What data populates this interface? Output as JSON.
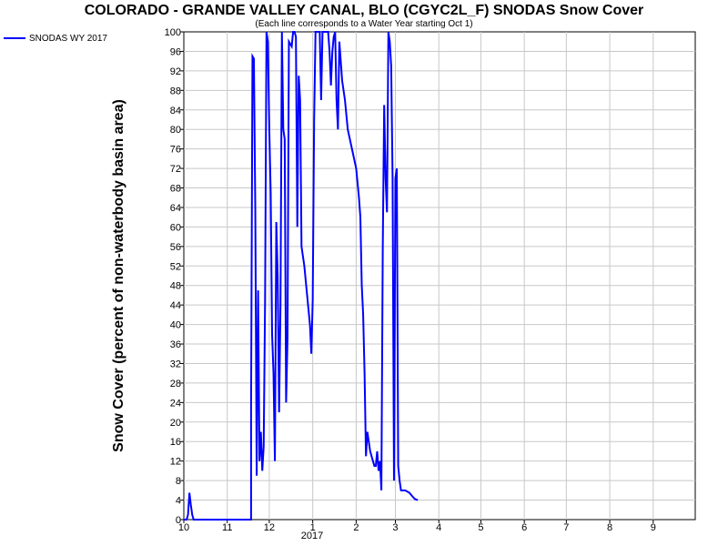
{
  "chart_data": {
    "type": "line",
    "title": "COLORADO - GRANDE VALLEY CANAL, BLO (CGYC2L_F) SNODAS Snow Cover",
    "subtitle": "(Each line corresponds to a Water Year starting Oct 1)",
    "ylabel": "Snow Cover (percent of non-waterbody basin area)",
    "xlabel": "",
    "year_label": "2017",
    "ylim": [
      0,
      100
    ],
    "yticks": [
      0,
      4,
      8,
      12,
      16,
      20,
      24,
      28,
      32,
      36,
      40,
      44,
      48,
      52,
      56,
      60,
      64,
      68,
      72,
      76,
      80,
      84,
      88,
      92,
      96,
      100
    ],
    "xticks": [
      "10",
      "11",
      "12",
      "1",
      "2",
      "3",
      "4",
      "5",
      "6",
      "7",
      "8",
      "9"
    ],
    "grid": true,
    "legend_position": "top-left",
    "series": [
      {
        "name": "SNODAS WY 2017",
        "color": "#0000ff",
        "points": [
          [
            "2016-10-01",
            0
          ],
          [
            "2016-10-03",
            0
          ],
          [
            "2016-10-04",
            1
          ],
          [
            "2016-10-05",
            5.5
          ],
          [
            "2016-10-06",
            3
          ],
          [
            "2016-10-07",
            1
          ],
          [
            "2016-10-08",
            0
          ],
          [
            "2016-10-15",
            0
          ],
          [
            "2016-11-01",
            0
          ],
          [
            "2016-11-15",
            0
          ],
          [
            "2016-11-18",
            0
          ],
          [
            "2016-11-18",
            23
          ],
          [
            "2016-11-19",
            95
          ],
          [
            "2016-11-20",
            94.5
          ],
          [
            "2016-11-21",
            64
          ],
          [
            "2016-11-22",
            9
          ],
          [
            "2016-11-23",
            47
          ],
          [
            "2016-11-24",
            12
          ],
          [
            "2016-11-25",
            18
          ],
          [
            "2016-11-26",
            10
          ],
          [
            "2016-11-27",
            15
          ],
          [
            "2016-11-28",
            45
          ],
          [
            "2016-11-29",
            100
          ],
          [
            "2016-11-30",
            98
          ],
          [
            "2016-12-01",
            80
          ],
          [
            "2016-12-02",
            67
          ],
          [
            "2016-12-03",
            38
          ],
          [
            "2016-12-04",
            30
          ],
          [
            "2016-12-05",
            12
          ],
          [
            "2016-12-06",
            61
          ],
          [
            "2016-12-07",
            50
          ],
          [
            "2016-12-08",
            22
          ],
          [
            "2016-12-09",
            44
          ],
          [
            "2016-12-10",
            100
          ],
          [
            "2016-12-11",
            80
          ],
          [
            "2016-12-12",
            78
          ],
          [
            "2016-12-13",
            24
          ],
          [
            "2016-12-14",
            37
          ],
          [
            "2016-12-15",
            98
          ],
          [
            "2016-12-16",
            97.5
          ],
          [
            "2016-12-17",
            97
          ],
          [
            "2016-12-18",
            100
          ],
          [
            "2016-12-19",
            100
          ],
          [
            "2016-12-20",
            99
          ],
          [
            "2016-12-21",
            60
          ],
          [
            "2016-12-22",
            91
          ],
          [
            "2016-12-23",
            86
          ],
          [
            "2016-12-24",
            56
          ],
          [
            "2016-12-26",
            52
          ],
          [
            "2016-12-28",
            46
          ],
          [
            "2016-12-30",
            40
          ],
          [
            "2016-12-31",
            34
          ],
          [
            "2017-01-01",
            45
          ],
          [
            "2017-01-02",
            82
          ],
          [
            "2017-01-03",
            100
          ],
          [
            "2017-01-05",
            100
          ],
          [
            "2017-01-06",
            100
          ],
          [
            "2017-01-07",
            86
          ],
          [
            "2017-01-08",
            100
          ],
          [
            "2017-01-09",
            100
          ],
          [
            "2017-01-10",
            100
          ],
          [
            "2017-01-12",
            100
          ],
          [
            "2017-01-13",
            96
          ],
          [
            "2017-01-14",
            89
          ],
          [
            "2017-01-15",
            96
          ],
          [
            "2017-01-16",
            99
          ],
          [
            "2017-01-17",
            100
          ],
          [
            "2017-01-18",
            86
          ],
          [
            "2017-01-19",
            80
          ],
          [
            "2017-01-20",
            98
          ],
          [
            "2017-01-22",
            90
          ],
          [
            "2017-01-24",
            86
          ],
          [
            "2017-01-26",
            80
          ],
          [
            "2017-01-29",
            76
          ],
          [
            "2017-02-01",
            72
          ],
          [
            "2017-02-03",
            66
          ],
          [
            "2017-02-04",
            62
          ],
          [
            "2017-02-05",
            48
          ],
          [
            "2017-02-06",
            42
          ],
          [
            "2017-02-07",
            30
          ],
          [
            "2017-02-08",
            13
          ],
          [
            "2017-02-09",
            18
          ],
          [
            "2017-02-10",
            16
          ],
          [
            "2017-02-11",
            14
          ],
          [
            "2017-02-13",
            12
          ],
          [
            "2017-02-14",
            11
          ],
          [
            "2017-02-15",
            11
          ],
          [
            "2017-02-16",
            14
          ],
          [
            "2017-02-17",
            10
          ],
          [
            "2017-02-18",
            12
          ],
          [
            "2017-02-19",
            6
          ],
          [
            "2017-02-20",
            56
          ],
          [
            "2017-02-21",
            85
          ],
          [
            "2017-02-22",
            70
          ],
          [
            "2017-02-23",
            63
          ],
          [
            "2017-02-24",
            100
          ],
          [
            "2017-02-25",
            98
          ],
          [
            "2017-02-26",
            93
          ],
          [
            "2017-02-27",
            70
          ],
          [
            "2017-02-28",
            8
          ],
          [
            "2017-03-01",
            70
          ],
          [
            "2017-03-02",
            72
          ],
          [
            "2017-03-03",
            11
          ],
          [
            "2017-03-04",
            8
          ],
          [
            "2017-03-05",
            6
          ],
          [
            "2017-03-08",
            6
          ],
          [
            "2017-03-11",
            5.5
          ],
          [
            "2017-03-13",
            4.8
          ],
          [
            "2017-03-15",
            4.2
          ],
          [
            "2017-03-17",
            4
          ]
        ]
      }
    ]
  }
}
